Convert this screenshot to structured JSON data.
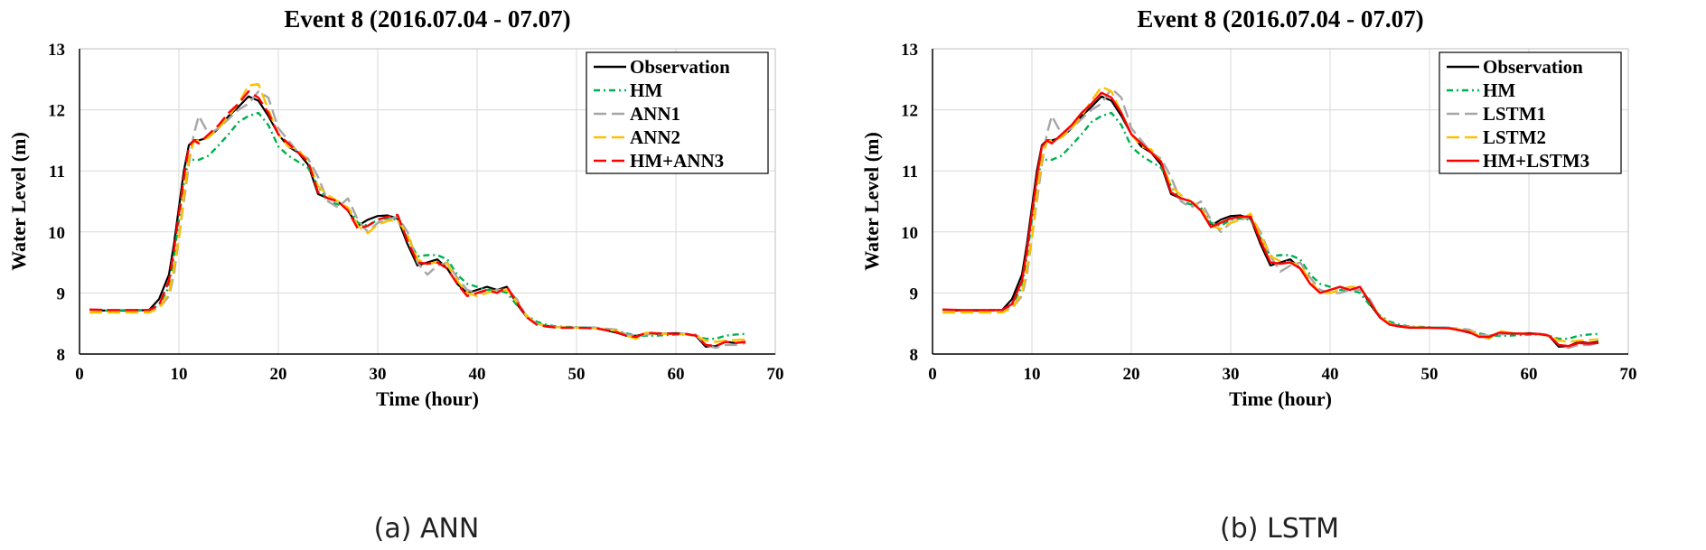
{
  "chart_data": [
    {
      "type": "line",
      "title": "Event 8 (2016.07.04 - 07.07)",
      "caption": "(a) ANN",
      "xlabel": "Time (hour)",
      "ylabel": "Water Level (m)",
      "xlim": [
        0,
        70
      ],
      "ylim": [
        8,
        13
      ],
      "xticks": [
        0,
        10,
        20,
        30,
        40,
        50,
        60,
        70
      ],
      "yticks": [
        8,
        9,
        10,
        11,
        12,
        13
      ],
      "grid": true,
      "legend_position": "top-right",
      "x": [
        1,
        3,
        5,
        7,
        8,
        9,
        9.5,
        10,
        10.5,
        11,
        11.5,
        12,
        13,
        14,
        15,
        16,
        17,
        18,
        19,
        20,
        21,
        22,
        23,
        24,
        25,
        26,
        27,
        28,
        29,
        30,
        31,
        32,
        33,
        34,
        35,
        36,
        37,
        38,
        39,
        40,
        41,
        42,
        43,
        44,
        45,
        46,
        47,
        48,
        50,
        52,
        54,
        55,
        56,
        57,
        58,
        60,
        61,
        62,
        63,
        64,
        65,
        66,
        67
      ],
      "series": [
        {
          "name": "Observation",
          "color": "#000000",
          "dash": "",
          "values": [
            8.72,
            8.71,
            8.71,
            8.72,
            8.9,
            9.3,
            9.8,
            10.4,
            11.0,
            11.42,
            11.5,
            11.5,
            11.55,
            11.7,
            11.9,
            12.05,
            12.22,
            12.15,
            11.9,
            11.6,
            11.4,
            11.3,
            11.1,
            10.62,
            10.55,
            10.5,
            10.35,
            10.1,
            10.2,
            10.26,
            10.27,
            10.22,
            9.8,
            9.45,
            9.5,
            9.55,
            9.4,
            9.15,
            9.0,
            9.05,
            9.1,
            9.05,
            9.1,
            8.82,
            8.6,
            8.5,
            8.46,
            8.44,
            8.43,
            8.43,
            8.35,
            8.3,
            8.3,
            8.33,
            8.33,
            8.34,
            8.33,
            8.3,
            8.12,
            8.13,
            8.2,
            8.18,
            8.2
          ]
        },
        {
          "name": "HM",
          "color": "#00b050",
          "dash": "7,4,2,4",
          "values": [
            8.72,
            8.71,
            8.72,
            8.72,
            8.8,
            9.1,
            9.6,
            10.2,
            10.8,
            11.2,
            11.18,
            11.18,
            11.25,
            11.42,
            11.6,
            11.8,
            11.9,
            11.95,
            11.75,
            11.4,
            11.25,
            11.15,
            11.05,
            10.75,
            10.5,
            10.45,
            10.4,
            10.15,
            10.1,
            10.2,
            10.22,
            10.2,
            9.9,
            9.6,
            9.62,
            9.62,
            9.55,
            9.3,
            9.15,
            9.1,
            9.05,
            9.05,
            9.0,
            8.8,
            8.63,
            8.53,
            8.48,
            8.45,
            8.44,
            8.42,
            8.38,
            8.34,
            8.3,
            8.3,
            8.3,
            8.32,
            8.32,
            8.3,
            8.25,
            8.25,
            8.3,
            8.32,
            8.33
          ]
        },
        {
          "name": "ANN1",
          "color": "#a6a6a6",
          "dash": "14,6",
          "values": [
            8.72,
            8.71,
            8.71,
            8.72,
            8.75,
            8.95,
            9.3,
            9.9,
            10.5,
            11.1,
            11.6,
            11.9,
            11.6,
            11.7,
            11.85,
            12.0,
            12.1,
            12.3,
            12.2,
            11.7,
            11.5,
            11.3,
            11.2,
            10.9,
            10.5,
            10.4,
            10.55,
            10.2,
            10.0,
            10.15,
            10.2,
            10.25,
            10.0,
            9.5,
            9.3,
            9.45,
            9.5,
            9.25,
            9.05,
            9.0,
            9.0,
            9.05,
            9.05,
            8.9,
            8.6,
            8.5,
            8.45,
            8.44,
            8.43,
            8.43,
            8.4,
            8.32,
            8.3,
            8.32,
            8.33,
            8.33,
            8.33,
            8.32,
            8.15,
            8.1,
            8.15,
            8.15,
            8.18
          ]
        },
        {
          "name": "ANN2",
          "color": "#ffc000",
          "dash": "14,6",
          "values": [
            8.68,
            8.68,
            8.68,
            8.68,
            8.75,
            9.0,
            9.4,
            9.9,
            10.6,
            11.2,
            11.48,
            11.5,
            11.55,
            11.7,
            11.9,
            12.1,
            12.4,
            12.42,
            12.0,
            11.6,
            11.4,
            11.35,
            11.15,
            10.75,
            10.6,
            10.5,
            10.4,
            10.1,
            9.98,
            10.12,
            10.18,
            10.2,
            9.95,
            9.55,
            9.48,
            9.5,
            9.48,
            9.2,
            9.0,
            8.95,
            9.0,
            9.05,
            9.05,
            8.85,
            8.62,
            8.5,
            8.45,
            8.44,
            8.43,
            8.42,
            8.38,
            8.3,
            8.25,
            8.35,
            8.33,
            8.33,
            8.32,
            8.3,
            8.22,
            8.2,
            8.22,
            8.23,
            8.24
          ]
        },
        {
          "name": "HM+ANN3",
          "color": "#ff0000",
          "dash": "14,6",
          "values": [
            8.73,
            8.72,
            8.72,
            8.72,
            8.8,
            9.2,
            9.7,
            10.3,
            10.9,
            11.4,
            11.5,
            11.45,
            11.6,
            11.75,
            11.95,
            12.1,
            12.3,
            12.2,
            11.95,
            11.6,
            11.45,
            11.3,
            11.15,
            10.65,
            10.55,
            10.5,
            10.35,
            10.05,
            10.1,
            10.2,
            10.25,
            10.28,
            9.85,
            9.5,
            9.48,
            9.5,
            9.4,
            9.15,
            8.95,
            9.0,
            9.05,
            9.0,
            9.1,
            8.85,
            8.6,
            8.48,
            8.45,
            8.43,
            8.43,
            8.42,
            8.36,
            8.3,
            8.28,
            8.35,
            8.34,
            8.33,
            8.33,
            8.3,
            8.15,
            8.13,
            8.2,
            8.18,
            8.2
          ]
        }
      ]
    },
    {
      "type": "line",
      "title": "Event 8 (2016.07.04 - 07.07)",
      "caption": "(b) LSTM",
      "xlabel": "Time (hour)",
      "ylabel": "Water Level (m)",
      "xlim": [
        0,
        70
      ],
      "ylim": [
        8,
        13
      ],
      "xticks": [
        0,
        10,
        20,
        30,
        40,
        50,
        60,
        70
      ],
      "yticks": [
        8,
        9,
        10,
        11,
        12,
        13
      ],
      "grid": true,
      "legend_position": "top-right",
      "x": [
        1,
        3,
        5,
        7,
        8,
        9,
        9.5,
        10,
        10.5,
        11,
        11.5,
        12,
        13,
        14,
        15,
        16,
        17,
        18,
        19,
        20,
        21,
        22,
        23,
        24,
        25,
        26,
        27,
        28,
        29,
        30,
        31,
        32,
        33,
        34,
        35,
        36,
        37,
        38,
        39,
        40,
        41,
        42,
        43,
        44,
        45,
        46,
        47,
        48,
        50,
        52,
        54,
        55,
        56,
        57,
        58,
        60,
        61,
        62,
        63,
        64,
        65,
        66,
        67
      ],
      "series": [
        {
          "name": "Observation",
          "color": "#000000",
          "dash": "",
          "values": [
            8.72,
            8.71,
            8.71,
            8.72,
            8.9,
            9.3,
            9.8,
            10.4,
            11.0,
            11.42,
            11.5,
            11.5,
            11.55,
            11.7,
            11.9,
            12.05,
            12.22,
            12.15,
            11.9,
            11.6,
            11.4,
            11.3,
            11.1,
            10.62,
            10.55,
            10.5,
            10.35,
            10.1,
            10.2,
            10.26,
            10.27,
            10.22,
            9.8,
            9.45,
            9.5,
            9.55,
            9.4,
            9.15,
            9.0,
            9.05,
            9.1,
            9.05,
            9.1,
            8.82,
            8.6,
            8.5,
            8.46,
            8.44,
            8.43,
            8.43,
            8.35,
            8.3,
            8.3,
            8.33,
            8.33,
            8.34,
            8.33,
            8.3,
            8.12,
            8.13,
            8.2,
            8.18,
            8.2
          ]
        },
        {
          "name": "HM",
          "color": "#00b050",
          "dash": "7,4,2,4",
          "values": [
            8.72,
            8.71,
            8.72,
            8.72,
            8.8,
            9.1,
            9.6,
            10.2,
            10.8,
            11.2,
            11.18,
            11.18,
            11.25,
            11.42,
            11.6,
            11.8,
            11.9,
            11.95,
            11.75,
            11.4,
            11.25,
            11.15,
            11.05,
            10.75,
            10.5,
            10.45,
            10.4,
            10.15,
            10.1,
            10.2,
            10.22,
            10.2,
            9.9,
            9.6,
            9.62,
            9.62,
            9.55,
            9.3,
            9.15,
            9.1,
            9.05,
            9.05,
            9.0,
            8.8,
            8.63,
            8.53,
            8.48,
            8.45,
            8.44,
            8.42,
            8.38,
            8.34,
            8.3,
            8.3,
            8.3,
            8.32,
            8.32,
            8.3,
            8.25,
            8.25,
            8.3,
            8.32,
            8.33
          ]
        },
        {
          "name": "LSTM1",
          "color": "#a6a6a6",
          "dash": "14,6",
          "values": [
            8.72,
            8.71,
            8.71,
            8.72,
            8.75,
            8.95,
            9.3,
            9.9,
            10.5,
            11.1,
            11.6,
            11.9,
            11.6,
            11.7,
            11.85,
            12.0,
            12.1,
            12.35,
            12.2,
            11.7,
            11.5,
            11.3,
            11.2,
            10.9,
            10.5,
            10.4,
            10.5,
            10.2,
            10.0,
            10.15,
            10.2,
            10.25,
            10.0,
            9.6,
            9.35,
            9.45,
            9.5,
            9.25,
            9.05,
            9.0,
            9.0,
            9.05,
            9.05,
            8.9,
            8.6,
            8.5,
            8.45,
            8.44,
            8.43,
            8.43,
            8.4,
            8.32,
            8.3,
            8.32,
            8.33,
            8.33,
            8.33,
            8.32,
            8.15,
            8.1,
            8.15,
            8.15,
            8.18
          ]
        },
        {
          "name": "LSTM2",
          "color": "#ffc000",
          "dash": "14,6",
          "values": [
            8.68,
            8.68,
            8.68,
            8.68,
            8.75,
            9.0,
            9.4,
            9.9,
            10.6,
            11.2,
            11.48,
            11.5,
            11.55,
            11.7,
            11.9,
            12.15,
            12.38,
            12.3,
            11.95,
            11.6,
            11.4,
            11.35,
            11.15,
            10.75,
            10.6,
            10.5,
            10.4,
            10.1,
            10.05,
            10.15,
            10.2,
            10.3,
            9.95,
            9.6,
            9.52,
            9.5,
            9.45,
            9.2,
            9.0,
            9.0,
            9.05,
            9.1,
            9.1,
            8.85,
            8.62,
            8.5,
            8.45,
            8.44,
            8.43,
            8.42,
            8.38,
            8.3,
            8.25,
            8.38,
            8.35,
            8.33,
            8.32,
            8.3,
            8.22,
            8.2,
            8.22,
            8.23,
            8.24
          ]
        },
        {
          "name": "HM+LSTM3",
          "color": "#ff0000",
          "dash": "",
          "values": [
            8.73,
            8.72,
            8.72,
            8.72,
            8.82,
            9.2,
            9.7,
            10.3,
            10.9,
            11.4,
            11.5,
            11.45,
            11.6,
            11.75,
            11.95,
            12.1,
            12.28,
            12.2,
            11.95,
            11.6,
            11.45,
            11.3,
            11.15,
            10.65,
            10.55,
            10.5,
            10.35,
            10.08,
            10.15,
            10.22,
            10.25,
            10.25,
            9.85,
            9.5,
            9.48,
            9.5,
            9.4,
            9.15,
            9.0,
            9.05,
            9.1,
            9.05,
            9.1,
            8.85,
            8.6,
            8.48,
            8.45,
            8.43,
            8.43,
            8.42,
            8.36,
            8.28,
            8.28,
            8.35,
            8.34,
            8.33,
            8.33,
            8.3,
            8.15,
            8.13,
            8.18,
            8.17,
            8.18
          ]
        }
      ]
    }
  ]
}
